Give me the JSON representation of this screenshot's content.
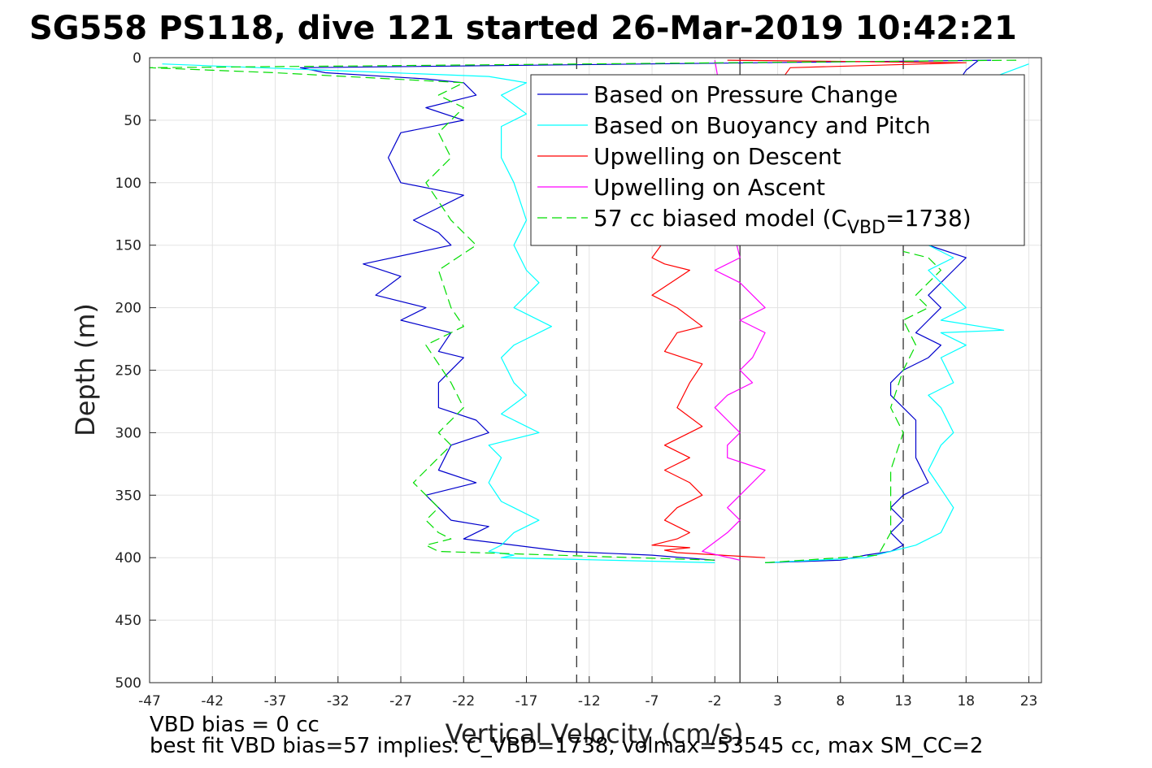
{
  "chart_data": {
    "type": "line",
    "title": "SG558 PS118, dive 121 started 26-Mar-2019 10:42:21",
    "xlabel": "Vertical Velocity (cm/s)",
    "ylabel": "Depth (m)",
    "xlim": [
      -47,
      24
    ],
    "ylim": [
      0,
      500
    ],
    "y_reversed": true,
    "xticks": [
      -47,
      -42,
      -37,
      -32,
      -27,
      -22,
      -17,
      -12,
      -7,
      -2,
      3,
      8,
      13,
      18,
      23
    ],
    "yticks": [
      0,
      50,
      100,
      150,
      200,
      250,
      300,
      350,
      400,
      450,
      500
    ],
    "grid": true,
    "legend_position": "top-right",
    "reference_lines": [
      {
        "x": -13,
        "style": "dashed"
      },
      {
        "x": 0,
        "style": "solid"
      },
      {
        "x": 13,
        "style": "dashed"
      }
    ],
    "series": [
      {
        "name": "Based on Pressure Change",
        "color": "#0000cc",
        "style": "solid",
        "descent": {
          "x": [
            20,
            -35,
            -33,
            -25,
            -22,
            -21,
            -25,
            -22,
            -27,
            -28,
            -27,
            -22,
            -24,
            -26,
            -24,
            -23,
            -30,
            -27,
            -29,
            -25,
            -27,
            -23,
            -24,
            -22,
            -24,
            -24,
            -21,
            -20,
            -23,
            -24,
            -21,
            -25,
            -24,
            -23,
            -20,
            -22,
            -14,
            -7,
            -2
          ],
          "y": [
            2,
            8,
            12,
            17,
            20,
            30,
            40,
            50,
            60,
            80,
            100,
            110,
            120,
            130,
            140,
            150,
            165,
            175,
            190,
            200,
            210,
            220,
            235,
            240,
            260,
            280,
            290,
            300,
            310,
            330,
            340,
            350,
            360,
            370,
            375,
            385,
            395,
            398,
            402
          ]
        },
        "ascent": {
          "x": [
            2,
            8,
            10,
            12,
            13,
            12,
            13,
            12,
            13,
            15,
            14,
            14,
            14,
            12,
            12,
            13,
            15,
            16,
            14,
            15,
            16,
            15,
            16,
            17,
            18,
            15,
            16,
            18,
            19
          ],
          "y": [
            404,
            402,
            398,
            395,
            390,
            380,
            370,
            360,
            350,
            340,
            320,
            300,
            290,
            270,
            260,
            250,
            240,
            230,
            220,
            210,
            200,
            190,
            180,
            170,
            160,
            150,
            40,
            10,
            2
          ]
        }
      },
      {
        "name": "Based on Buoyancy and Pitch",
        "color": "#00ffff",
        "style": "solid",
        "descent": {
          "x": [
            -46,
            -33,
            -20,
            -17,
            -19,
            -17,
            -19,
            -19,
            -18,
            -17,
            -18,
            -17,
            -16,
            -17,
            -18,
            -15,
            -18,
            -19,
            -18,
            -17,
            -19,
            -18,
            -16,
            -20,
            -19,
            -20,
            -19,
            -18,
            -16,
            -18,
            -19,
            -20,
            -18,
            -19,
            -2
          ],
          "y": [
            5,
            10,
            15,
            20,
            30,
            45,
            55,
            80,
            100,
            130,
            150,
            170,
            180,
            190,
            200,
            215,
            230,
            240,
            260,
            270,
            285,
            290,
            300,
            310,
            320,
            340,
            355,
            360,
            370,
            380,
            390,
            395,
            398,
            400,
            404
          ]
        },
        "ascent": {
          "x": [
            2,
            10,
            14,
            16,
            17,
            16,
            15,
            16,
            17,
            16,
            15,
            17,
            16,
            18,
            16,
            21,
            16,
            18,
            17,
            16,
            15,
            17,
            15,
            19,
            23
          ],
          "y": [
            404,
            400,
            390,
            380,
            360,
            345,
            330,
            310,
            300,
            280,
            270,
            260,
            240,
            230,
            220,
            218,
            210,
            200,
            190,
            180,
            170,
            160,
            150,
            20,
            5
          ]
        }
      },
      {
        "name": "Upwelling on Descent",
        "color": "#ff0000",
        "style": "solid",
        "x": [
          -1,
          18,
          4,
          -7,
          -6,
          -4,
          -7,
          -5,
          -3,
          -5,
          -6,
          -3,
          -4,
          -5,
          -3,
          -6,
          -4,
          -6,
          -4,
          -3,
          -5,
          -6,
          -4,
          -5,
          -7,
          -4,
          -6,
          -5,
          2
        ],
        "y": [
          2,
          4,
          8,
          160,
          165,
          170,
          190,
          200,
          215,
          220,
          235,
          245,
          260,
          280,
          295,
          310,
          320,
          330,
          340,
          350,
          360,
          370,
          380,
          385,
          390,
          392,
          394,
          396,
          400
        ]
      },
      {
        "name": "Upwelling on Ascent",
        "color": "#ff00ff",
        "style": "solid",
        "x": [
          -2,
          -1,
          -1,
          0,
          -2,
          0,
          2,
          0,
          2,
          1,
          0,
          1,
          -1,
          -2,
          -1,
          0,
          -1,
          -1,
          2,
          0,
          -1,
          0,
          -1,
          -3,
          0
        ],
        "y": [
          2,
          60,
          120,
          160,
          170,
          180,
          200,
          210,
          220,
          240,
          250,
          260,
          270,
          280,
          290,
          300,
          310,
          320,
          330,
          350,
          360,
          370,
          380,
          395,
          402
        ]
      },
      {
        "name": "57 cc biased model (C_VBD=1738)",
        "color": "#00dd00",
        "style": "dashed",
        "descent": {
          "x": [
            22,
            -47,
            -37,
            -22,
            -24,
            -22,
            -24,
            -23,
            -25,
            -23,
            -21,
            -24,
            -23,
            -22,
            -25,
            -23,
            -22,
            -24,
            -23,
            -25,
            -26,
            -24,
            -25,
            -24,
            -23,
            -25,
            -24,
            -2
          ],
          "y": [
            2,
            8,
            12,
            20,
            30,
            40,
            60,
            80,
            100,
            130,
            150,
            170,
            200,
            215,
            230,
            260,
            280,
            300,
            310,
            330,
            340,
            360,
            370,
            380,
            385,
            390,
            395,
            402
          ]
        },
        "ascent": {
          "x": [
            2,
            11,
            12,
            12,
            12,
            13,
            12,
            13,
            14,
            13,
            15,
            14,
            15,
            16,
            15,
            13
          ],
          "y": [
            404,
            398,
            380,
            360,
            330,
            300,
            280,
            250,
            230,
            210,
            200,
            190,
            180,
            170,
            160,
            155
          ]
        }
      }
    ],
    "legend": [
      {
        "text": "Based on Pressure Change",
        "color": "#0000cc",
        "style": "solid"
      },
      {
        "text": "Based on Buoyancy and Pitch",
        "color": "#00ffff",
        "style": "solid"
      },
      {
        "text": "Upwelling on Descent",
        "color": "#ff0000",
        "style": "solid"
      },
      {
        "text": "Upwelling on Ascent",
        "color": "#ff00ff",
        "style": "solid"
      },
      {
        "text": "57 cc biased model (C",
        "sub": "VBD",
        "tail": "=1738)",
        "color": "#00dd00",
        "style": "dashed"
      }
    ]
  },
  "footer": {
    "line1": "VBD bias = 0 cc",
    "line2": "best fit VBD bias=57 implies: C_VBD=1738, volmax=53545 cc, max SM_CC=2"
  }
}
